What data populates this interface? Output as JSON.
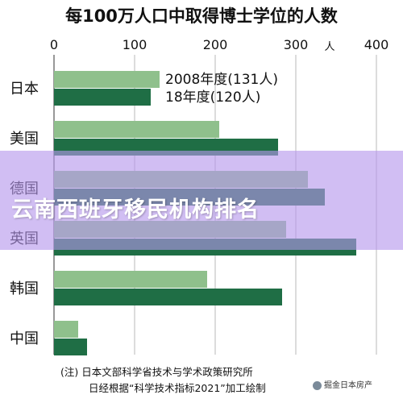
{
  "chart_data": {
    "type": "bar",
    "orientation": "horizontal",
    "title": "每100万人口中取得博士学位的人数",
    "unit_label": "人",
    "xlim": [
      0,
      400
    ],
    "ticks": [
      0,
      100,
      200,
      300,
      400
    ],
    "categories": [
      "日本",
      "美国",
      "德国",
      "英国",
      "韩国",
      "中国"
    ],
    "series": [
      {
        "name": "2008年度(131人)",
        "values": [
          131,
          205,
          315,
          288,
          190,
          30
        ],
        "color": "#8fc08c"
      },
      {
        "name": "18年度(120人)",
        "values": [
          120,
          278,
          336,
          375,
          283,
          41
        ],
        "color": "#1f6e45"
      }
    ],
    "grid": true,
    "legend": "inside-top-right of first group"
  },
  "footnote": {
    "line1": "(注) 日本文部科学省技术与学术政策研究所",
    "line2": "日经根据“科学技术指标2021”加工绘制"
  },
  "banner": {
    "text": "云南西班牙移民机构排名"
  },
  "watermark": {
    "text": "掘金日本房产"
  }
}
